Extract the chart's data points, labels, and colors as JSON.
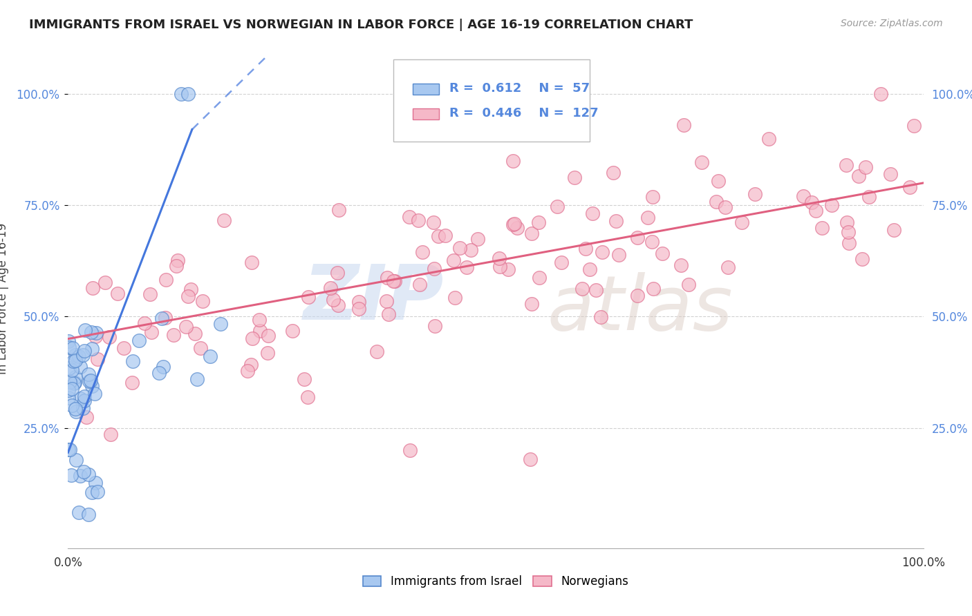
{
  "title": "IMMIGRANTS FROM ISRAEL VS NORWEGIAN IN LABOR FORCE | AGE 16-19 CORRELATION CHART",
  "source_text": "Source: ZipAtlas.com",
  "ylabel": "In Labor Force | Age 16-19",
  "israel_R": 0.612,
  "israel_N": 57,
  "norway_R": 0.446,
  "norway_N": 127,
  "israel_color": "#a8c8f0",
  "norway_color": "#f5b8c8",
  "israel_edge_color": "#5588cc",
  "norway_edge_color": "#e07090",
  "israel_line_color": "#4477dd",
  "norway_line_color": "#e06080",
  "ytick_labels": [
    "25.0%",
    "50.0%",
    "75.0%",
    "100.0%"
  ],
  "ytick_positions": [
    0.25,
    0.5,
    0.75,
    1.0
  ],
  "tick_color": "#5588dd",
  "watermark_zip_color": "#c8d8f0",
  "watermark_atlas_color": "#d8c8c0"
}
